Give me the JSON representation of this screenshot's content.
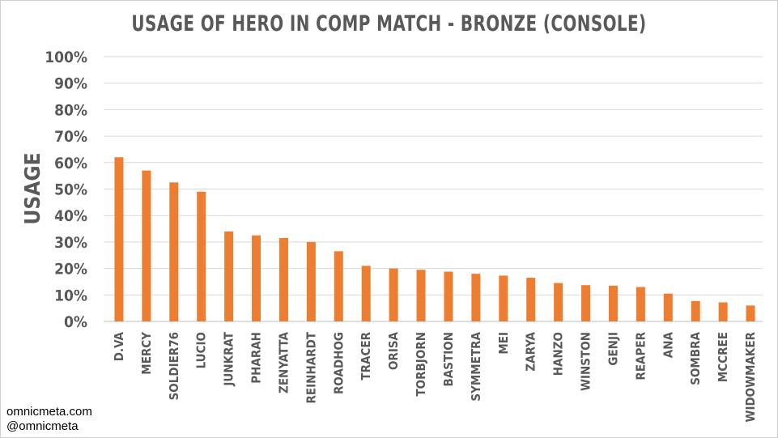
{
  "chart_data": {
    "type": "bar",
    "title": "USAGE OF HERO IN COMP MATCH - BRONZE (CONSOLE)",
    "xlabel": "",
    "ylabel": "USAGE",
    "categories": [
      "D.VA",
      "MERCY",
      "SOLDIER76",
      "LUCIO",
      "JUNKRAT",
      "PHARAH",
      "ZENYATTA",
      "REINHARDT",
      "ROADHOG",
      "TRACER",
      "ORISA",
      "TORBJORN",
      "BASTION",
      "SYMMETRA",
      "MEI",
      "ZARYA",
      "HANZO",
      "WINSTON",
      "GENJI",
      "REAPER",
      "ANA",
      "SOMBRA",
      "MCCREE",
      "WIDOWMAKER"
    ],
    "values": [
      62,
      57,
      52.5,
      49,
      34,
      32.5,
      31.5,
      30,
      26.5,
      21,
      20,
      19.5,
      18.8,
      18,
      17.3,
      16.5,
      14.5,
      13.7,
      13.5,
      13,
      10.5,
      7.7,
      7.2,
      6
    ],
    "ylim": [
      0,
      100
    ],
    "yticks": [
      "0%",
      "10%",
      "20%",
      "30%",
      "40%",
      "50%",
      "60%",
      "70%",
      "80%",
      "90%",
      "100%"
    ],
    "grid": true,
    "bar_color": "#ed7d31",
    "grid_color": "#d9d9d9",
    "text_color": "#595959"
  },
  "credits": {
    "site": "omnicmeta.com",
    "handle": "@omnicmeta"
  }
}
